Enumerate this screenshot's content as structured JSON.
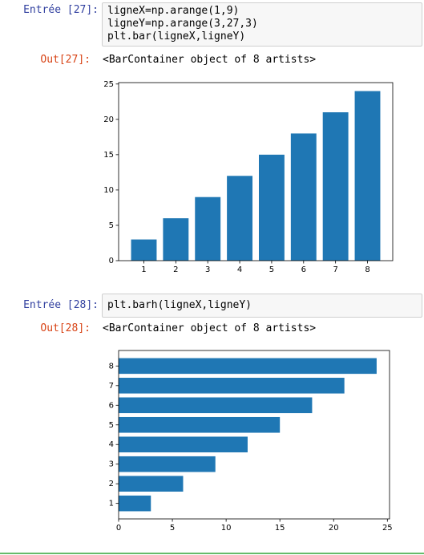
{
  "cells": [
    {
      "prompt_in": "Entrée [27]:",
      "code": [
        "ligneX=np.arange(1,9)",
        "ligneY=np.arange(3,27,3)",
        "plt.bar(ligneX,ligneY)"
      ],
      "prompt_out": "Out[27]:",
      "output": "<BarContainer object of 8 artists>"
    },
    {
      "prompt_in": "Entrée [28]:",
      "code": [
        "plt.barh(ligneX,ligneY)"
      ],
      "prompt_out": "Out[28]:",
      "output": "<BarContainer object of 8 artists>"
    }
  ],
  "chart_data": [
    {
      "type": "bar",
      "x": [
        1,
        2,
        3,
        4,
        5,
        6,
        7,
        8
      ],
      "values": [
        3,
        6,
        9,
        12,
        15,
        18,
        21,
        24
      ],
      "color": "#1f77b4",
      "xlim": [
        0.21,
        8.79
      ],
      "xticks": [
        1,
        2,
        3,
        4,
        5,
        6,
        7,
        8
      ],
      "ylim": [
        0,
        25.2
      ],
      "yticks": [
        0,
        5,
        10,
        15,
        20,
        25
      ]
    },
    {
      "type": "barh",
      "y": [
        1,
        2,
        3,
        4,
        5,
        6,
        7,
        8
      ],
      "values": [
        3,
        6,
        9,
        12,
        15,
        18,
        21,
        24
      ],
      "color": "#1f77b4",
      "xlim": [
        0,
        25.2
      ],
      "xticks": [
        0,
        5,
        10,
        15,
        20,
        25
      ],
      "ylim": [
        0.21,
        8.79
      ],
      "yticks": [
        1,
        2,
        3,
        4,
        5,
        6,
        7,
        8
      ]
    }
  ]
}
